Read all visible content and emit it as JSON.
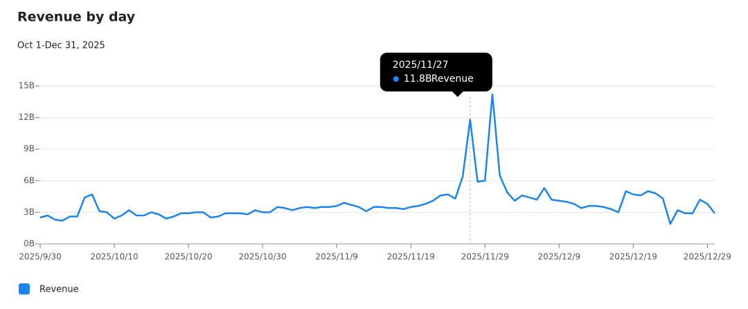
{
  "chart_data": {
    "type": "line",
    "title": "Revenue by day",
    "subtitle": "Oct 1-Dec 31, 2025",
    "categories": [
      "2025/9/30",
      null,
      null,
      null,
      null,
      null,
      null,
      null,
      null,
      null,
      "2025/10/10",
      null,
      null,
      null,
      null,
      null,
      null,
      null,
      null,
      null,
      "2025/10/20",
      null,
      null,
      null,
      null,
      null,
      null,
      null,
      null,
      null,
      "2025/10/30",
      null,
      null,
      null,
      null,
      null,
      null,
      null,
      null,
      null,
      "2025/11/9",
      null,
      null,
      null,
      null,
      null,
      null,
      null,
      null,
      null,
      "2025/11/19",
      null,
      null,
      null,
      null,
      null,
      null,
      null,
      null,
      null,
      "2025/11/29",
      null,
      null,
      null,
      null,
      null,
      null,
      null,
      null,
      null,
      "2025/12/9",
      null,
      null,
      null,
      null,
      null,
      null,
      null,
      null,
      null,
      "2025/12/19",
      null,
      null,
      null,
      null,
      null,
      null,
      null,
      null,
      null,
      "2025/12/29",
      null
    ],
    "series": [
      {
        "name": "Revenue",
        "color": "#1a84f2",
        "values": [
          2.5,
          2.7,
          2.3,
          2.2,
          2.6,
          2.6,
          4.4,
          4.7,
          3.1,
          3.0,
          2.4,
          2.7,
          3.2,
          2.7,
          2.7,
          3.0,
          2.8,
          2.4,
          2.6,
          2.9,
          2.9,
          3.0,
          3.0,
          2.5,
          2.6,
          2.9,
          2.9,
          2.9,
          2.8,
          3.2,
          3.0,
          3.0,
          3.5,
          3.4,
          3.2,
          3.4,
          3.5,
          3.4,
          3.5,
          3.5,
          3.6,
          3.9,
          3.7,
          3.5,
          3.1,
          3.5,
          3.5,
          3.4,
          3.4,
          3.3,
          3.5,
          3.6,
          3.8,
          4.1,
          4.6,
          4.7,
          4.3,
          6.4,
          11.8,
          5.9,
          6.0,
          14.2,
          6.5,
          4.9,
          4.1,
          4.6,
          4.4,
          4.2,
          5.3,
          4.2,
          4.1,
          4.0,
          3.8,
          3.4,
          3.6,
          3.6,
          3.5,
          3.3,
          3.0,
          5.0,
          4.7,
          4.6,
          5.0,
          4.8,
          4.3,
          1.9,
          3.2,
          2.9,
          2.9,
          4.2,
          3.8,
          2.9
        ]
      }
    ],
    "ylim": [
      0,
      15
    ],
    "yticks": [
      {
        "value": 0,
        "label": "0B"
      },
      {
        "value": 3,
        "label": "3B"
      },
      {
        "value": 6,
        "label": "6B"
      },
      {
        "value": 9,
        "label": "9B"
      },
      {
        "value": 12,
        "label": "12B"
      },
      {
        "value": 15,
        "label": "15B"
      }
    ],
    "grid": true,
    "tooltip": {
      "title": "2025/11/27",
      "value_label": "11.8B"
    }
  }
}
